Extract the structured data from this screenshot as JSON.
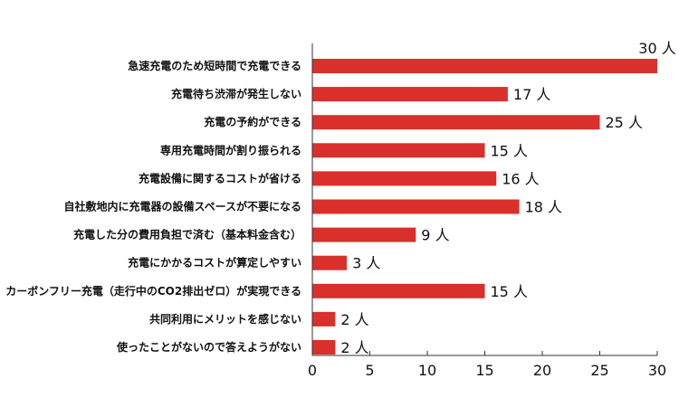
{
  "chart_data": {
    "type": "bar",
    "orientation": "horizontal",
    "categories": [
      "急速充電のため短時間で充電できる",
      "充電待ち渋滞が発生しない",
      "充電の予約ができる",
      "専用充電時間が割り振られる",
      "充電設備に関するコストが省ける",
      "自社敷地内に充電器の設備スペースが不要になる",
      "充電した分の費用負担で済む（基本料金含む）",
      "充電にかかるコストが算定しやすい",
      "カーボンフリー充電（走行中のCO2排出ゼロ）が実現できる",
      "共同利用にメリットを感じない",
      "使ったことがないので答えようがない"
    ],
    "values": [
      30,
      17,
      25,
      15,
      16,
      18,
      9,
      3,
      15,
      2,
      2
    ],
    "value_suffix": " 人",
    "xlim": [
      0,
      30
    ],
    "xticks": [
      0,
      5,
      10,
      15,
      20,
      25,
      30
    ],
    "grid": false,
    "bar_color": "#d9302b"
  }
}
